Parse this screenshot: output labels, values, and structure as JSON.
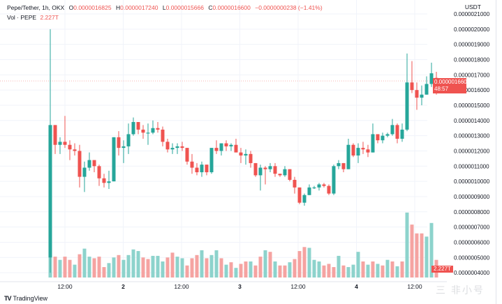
{
  "legend": {
    "symbol": "Pepe/Tether, 1h, OKX",
    "o_label": "O",
    "o_value": "0.0000016825",
    "h_label": "H",
    "h_value": "0.0000017240",
    "l_label": "L",
    "l_value": "0.0000015666",
    "c_label": "C",
    "c_value": "0.0000016600",
    "change": "−0.0000000238 (−1.41%)",
    "vol_label": "Vol · PEPE",
    "vol_value": "2.227T"
  },
  "axis": {
    "currency": "USDT",
    "price_ticks": [
      "0.0000021000",
      "0.0000020000",
      "0.0000019000",
      "0.0000018000",
      "0.0000017000",
      "0.0000016000",
      "0.0000015000",
      "0.0000014000",
      "0.0000013000",
      "0.0000012000",
      "0.0000011000",
      "0.0000010000",
      "0.0000009000",
      "0.0000008000",
      "0.0000007000",
      "0.0000006000",
      "0.0000005000",
      "0.0000004000"
    ],
    "time_ticks": [
      {
        "label": "12:00",
        "bold": false
      },
      {
        "label": "2",
        "bold": true
      },
      {
        "label": "12:00",
        "bold": false
      },
      {
        "label": "3",
        "bold": true
      },
      {
        "label": "12:00",
        "bold": false
      },
      {
        "label": "4",
        "bold": true
      },
      {
        "label": "12:00",
        "bold": false
      }
    ]
  },
  "last_price_tag": {
    "price": "0.0000016600",
    "countdown": "48:57"
  },
  "volume_tag": "2.227T",
  "branding": {
    "logo": "TV",
    "name": "TradingView"
  },
  "watermark": "三 非小号",
  "colors": {
    "up": "#26a69a",
    "down": "#ef5350",
    "up_vol": "#8dd3cc",
    "down_vol": "#f5a3a1",
    "grid": "#f0f3fa"
  },
  "chart_data": {
    "type": "candlestick",
    "title": "Pepe/Tether, 1h, OKX",
    "ylabel": "USDT",
    "ylim": [
      4e-07,
      2.1e-06
    ],
    "x_ticks": [
      "12:00",
      "2",
      "12:00",
      "3",
      "12:00",
      "4",
      "12:00"
    ],
    "candles_units": "1e-6 USDT",
    "candles": [
      [
        0.5,
        2.0,
        0.4,
        1.37
      ],
      [
        1.37,
        1.37,
        1.18,
        1.24
      ],
      [
        1.24,
        1.29,
        1.18,
        1.26
      ],
      [
        1.26,
        1.43,
        1.22,
        1.24
      ],
      [
        1.24,
        1.27,
        1.14,
        1.21
      ],
      [
        1.21,
        1.25,
        1.17,
        1.2
      ],
      [
        1.2,
        1.24,
        0.96,
        1.03
      ],
      [
        1.03,
        1.13,
        0.93,
        1.09
      ],
      [
        1.09,
        1.19,
        1.07,
        1.14
      ],
      [
        1.14,
        1.14,
        1.06,
        1.1
      ],
      [
        1.1,
        1.11,
        0.97,
        1.02
      ],
      [
        1.02,
        1.05,
        0.96,
        0.99
      ],
      [
        0.99,
        1.07,
        0.95,
        1.0
      ],
      [
        1.0,
        1.29,
        1.0,
        1.29
      ],
      [
        1.29,
        1.33,
        1.17,
        1.22
      ],
      [
        1.22,
        1.27,
        1.12,
        1.23
      ],
      [
        1.23,
        1.38,
        1.18,
        1.31
      ],
      [
        1.31,
        1.42,
        1.3,
        1.39
      ],
      [
        1.39,
        1.39,
        1.31,
        1.34
      ],
      [
        1.34,
        1.37,
        1.28,
        1.32
      ],
      [
        1.32,
        1.38,
        1.24,
        1.32
      ],
      [
        1.32,
        1.4,
        1.31,
        1.35
      ],
      [
        1.35,
        1.39,
        1.32,
        1.34
      ],
      [
        1.34,
        1.36,
        1.23,
        1.26
      ],
      [
        1.26,
        1.28,
        1.19,
        1.21
      ],
      [
        1.21,
        1.25,
        1.18,
        1.22
      ],
      [
        1.22,
        1.25,
        1.18,
        1.23
      ],
      [
        1.23,
        1.26,
        1.2,
        1.22
      ],
      [
        1.22,
        1.22,
        1.11,
        1.13
      ],
      [
        1.13,
        1.18,
        1.05,
        1.09
      ],
      [
        1.09,
        1.12,
        1.04,
        1.06
      ],
      [
        1.06,
        1.13,
        1.03,
        1.11
      ],
      [
        1.11,
        1.11,
        1.04,
        1.06
      ],
      [
        1.06,
        1.18,
        1.05,
        1.22
      ],
      [
        1.22,
        1.27,
        1.18,
        1.2
      ],
      [
        1.2,
        1.25,
        1.17,
        1.25
      ],
      [
        1.25,
        1.27,
        1.2,
        1.23
      ],
      [
        1.23,
        1.25,
        1.2,
        1.24
      ],
      [
        1.24,
        1.28,
        1.2,
        1.19
      ],
      [
        1.19,
        1.22,
        1.12,
        1.17
      ],
      [
        1.17,
        1.21,
        1.11,
        1.18
      ],
      [
        1.18,
        1.2,
        1.09,
        1.12
      ],
      [
        1.12,
        1.12,
        1.03,
        1.04
      ],
      [
        1.04,
        1.11,
        0.94,
        1.09
      ],
      [
        1.09,
        1.1,
        0.98,
        1.08
      ],
      [
        1.08,
        1.12,
        1.06,
        1.1
      ],
      [
        1.1,
        1.12,
        1.03,
        1.05
      ],
      [
        1.05,
        1.05,
        1.03,
        1.04
      ],
      [
        1.04,
        1.1,
        1.03,
        1.08
      ],
      [
        1.08,
        1.08,
        1.0,
        1.01
      ],
      [
        1.01,
        1.03,
        0.92,
        0.96
      ],
      [
        0.96,
        0.96,
        0.85,
        0.86
      ],
      [
        0.86,
        0.92,
        0.84,
        0.91
      ],
      [
        0.91,
        0.98,
        0.91,
        0.96
      ],
      [
        0.96,
        0.97,
        0.95,
        0.96
      ],
      [
        0.96,
        0.99,
        0.94,
        0.98
      ],
      [
        0.98,
        0.99,
        0.96,
        0.97
      ],
      [
        0.97,
        0.98,
        0.91,
        0.92
      ],
      [
        0.92,
        1.11,
        0.91,
        1.1
      ],
      [
        1.1,
        1.14,
        1.08,
        1.12
      ],
      [
        1.12,
        1.12,
        1.06,
        1.08
      ],
      [
        1.08,
        1.28,
        1.08,
        1.24
      ],
      [
        1.24,
        1.25,
        1.16,
        1.17
      ],
      [
        1.17,
        1.25,
        1.12,
        1.22
      ],
      [
        1.22,
        1.26,
        1.18,
        1.21
      ],
      [
        1.21,
        1.24,
        1.16,
        1.19
      ],
      [
        1.19,
        1.38,
        1.19,
        1.31
      ],
      [
        1.31,
        1.31,
        1.25,
        1.27
      ],
      [
        1.27,
        1.32,
        1.25,
        1.3
      ],
      [
        1.3,
        1.32,
        1.29,
        1.31
      ],
      [
        1.31,
        1.41,
        1.3,
        1.37
      ],
      [
        1.37,
        1.38,
        1.25,
        1.28
      ],
      [
        1.28,
        1.38,
        1.26,
        1.34
      ],
      [
        1.34,
        1.84,
        1.33,
        1.65
      ],
      [
        1.65,
        1.79,
        1.58,
        1.6
      ],
      [
        1.6,
        1.65,
        1.47,
        1.55
      ],
      [
        1.55,
        1.63,
        1.5,
        1.57
      ],
      [
        1.57,
        1.69,
        1.57,
        1.64
      ],
      [
        1.64,
        1.78,
        1.62,
        1.71
      ],
      [
        1.68,
        1.72,
        1.57,
        1.66
      ]
    ],
    "volume": [
      {
        "v": 3.0,
        "up": true
      },
      {
        "v": 2.6,
        "up": false
      },
      {
        "v": 2.2,
        "up": true
      },
      {
        "v": 2.6,
        "up": false
      },
      {
        "v": 2.2,
        "up": false
      },
      {
        "v": 1.6,
        "up": true
      },
      {
        "v": 2.9,
        "up": false
      },
      {
        "v": 3.6,
        "up": true
      },
      {
        "v": 2.6,
        "up": true
      },
      {
        "v": 2.4,
        "up": false
      },
      {
        "v": 2.6,
        "up": false
      },
      {
        "v": 1.3,
        "up": false
      },
      {
        "v": 1.8,
        "up": true
      },
      {
        "v": 2.5,
        "up": true
      },
      {
        "v": 2.8,
        "up": false
      },
      {
        "v": 2.2,
        "up": true
      },
      {
        "v": 2.8,
        "up": true
      },
      {
        "v": 3.5,
        "up": true
      },
      {
        "v": 3.3,
        "up": true
      },
      {
        "v": 2.5,
        "up": false
      },
      {
        "v": 2.3,
        "up": false
      },
      {
        "v": 2.7,
        "up": true
      },
      {
        "v": 2.7,
        "up": true
      },
      {
        "v": 2.0,
        "up": true
      },
      {
        "v": 2.5,
        "up": false
      },
      {
        "v": 3.1,
        "up": false
      },
      {
        "v": 2.6,
        "up": true
      },
      {
        "v": 2.4,
        "up": true
      },
      {
        "v": 1.5,
        "up": false
      },
      {
        "v": 2.4,
        "up": false
      },
      {
        "v": 2.8,
        "up": false
      },
      {
        "v": 3.4,
        "up": true
      },
      {
        "v": 2.4,
        "up": false
      },
      {
        "v": 2.8,
        "up": true
      },
      {
        "v": 3.4,
        "up": true
      },
      {
        "v": 2.4,
        "up": false
      },
      {
        "v": 1.6,
        "up": true
      },
      {
        "v": 1.9,
        "up": false
      },
      {
        "v": 1.2,
        "up": true
      },
      {
        "v": 1.7,
        "up": false
      },
      {
        "v": 2.0,
        "up": false
      },
      {
        "v": 2.0,
        "up": true
      },
      {
        "v": 1.5,
        "up": false
      },
      {
        "v": 2.6,
        "up": false
      },
      {
        "v": 3.4,
        "up": true
      },
      {
        "v": 3.2,
        "up": false
      },
      {
        "v": 2.0,
        "up": true
      },
      {
        "v": 1.5,
        "up": false
      },
      {
        "v": 1.5,
        "up": false
      },
      {
        "v": 1.9,
        "up": true
      },
      {
        "v": 2.3,
        "up": false
      },
      {
        "v": 3.3,
        "up": false
      },
      {
        "v": 3.8,
        "up": false
      },
      {
        "v": 3.7,
        "up": true
      },
      {
        "v": 2.2,
        "up": true
      },
      {
        "v": 2.0,
        "up": true
      },
      {
        "v": 1.5,
        "up": false
      },
      {
        "v": 1.7,
        "up": false
      },
      {
        "v": 1.3,
        "up": false
      },
      {
        "v": 2.7,
        "up": true
      },
      {
        "v": 1.5,
        "up": false
      },
      {
        "v": 1.3,
        "up": true
      },
      {
        "v": 1.6,
        "up": true
      },
      {
        "v": 3.2,
        "up": true
      },
      {
        "v": 2.0,
        "up": false
      },
      {
        "v": 1.6,
        "up": true
      },
      {
        "v": 2.0,
        "up": false
      },
      {
        "v": 1.7,
        "up": true
      },
      {
        "v": 1.5,
        "up": false
      },
      {
        "v": 2.2,
        "up": true
      },
      {
        "v": 2.0,
        "up": false
      },
      {
        "v": 1.4,
        "up": true
      },
      {
        "v": 2.0,
        "up": false
      },
      {
        "v": 8.1,
        "up": true
      },
      {
        "v": 6.6,
        "up": false
      },
      {
        "v": 5.5,
        "up": false
      },
      {
        "v": 5.5,
        "up": false
      },
      {
        "v": 5.1,
        "up": true
      },
      {
        "v": 6.8,
        "up": true
      },
      {
        "v": 2.2,
        "up": false
      }
    ]
  }
}
